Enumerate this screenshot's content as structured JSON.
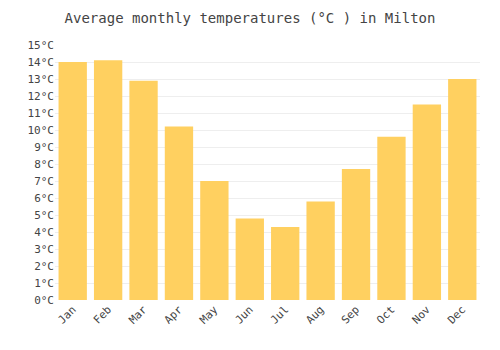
{
  "chart_data": {
    "type": "bar",
    "title": "Average monthly temperatures (°C ) in Milton",
    "categories": [
      "Jan",
      "Feb",
      "Mar",
      "Apr",
      "May",
      "Jun",
      "Jul",
      "Aug",
      "Sep",
      "Oct",
      "Nov",
      "Dec"
    ],
    "values": [
      14.0,
      14.1,
      12.9,
      10.2,
      7.0,
      4.8,
      4.3,
      5.8,
      7.7,
      9.6,
      11.5,
      13.0
    ],
    "color": "#FFD060",
    "ylim": [
      0,
      15
    ],
    "yticks": [
      {
        "value": 0,
        "label": "0°C"
      },
      {
        "value": 1,
        "label": "1°C"
      },
      {
        "value": 2,
        "label": "2°C"
      },
      {
        "value": 3,
        "label": "3°C"
      },
      {
        "value": 4,
        "label": "4°C"
      },
      {
        "value": 5,
        "label": "5°C"
      },
      {
        "value": 6,
        "label": "6°C"
      },
      {
        "value": 7,
        "label": "7°C"
      },
      {
        "value": 8,
        "label": "8°C"
      },
      {
        "value": 9,
        "label": "9°C"
      },
      {
        "value": 10,
        "label": "10°C"
      },
      {
        "value": 11,
        "label": "11°C"
      },
      {
        "value": 12,
        "label": "12°C"
      },
      {
        "value": 13,
        "label": "13°C"
      },
      {
        "value": 14,
        "label": "14°C"
      },
      {
        "value": 15,
        "label": "15°C"
      }
    ],
    "grid": true
  }
}
